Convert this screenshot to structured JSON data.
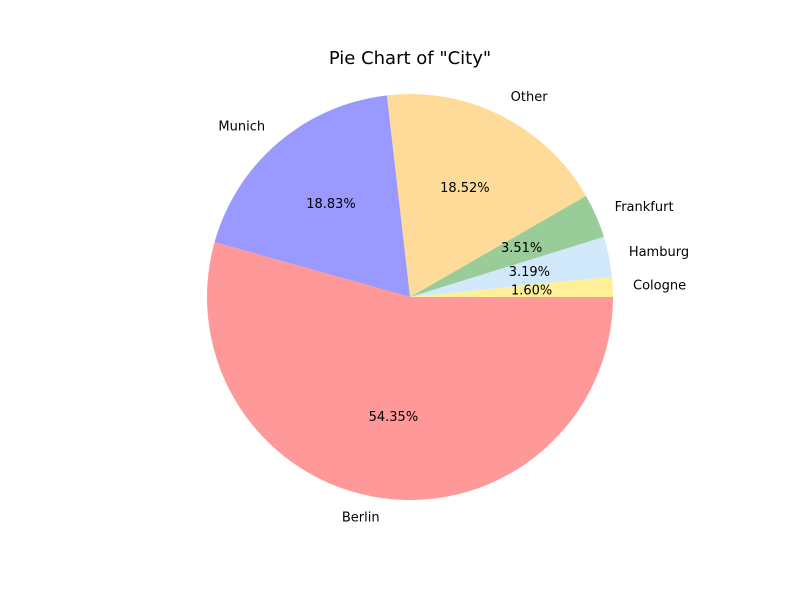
{
  "chart_data": {
    "type": "pie",
    "title": "Pie Chart of \"City\"",
    "start_angle_deg": 0,
    "direction": "counterclockwise",
    "slices": [
      {
        "label": "Cologne",
        "value": 1.6,
        "pct_label": "1.60%",
        "color": "#ffef99"
      },
      {
        "label": "Hamburg",
        "value": 3.19,
        "pct_label": "3.19%",
        "color": "#d1e9fb"
      },
      {
        "label": "Frankfurt",
        "value": 3.51,
        "pct_label": "3.51%",
        "color": "#99cc99"
      },
      {
        "label": "Other",
        "value": 18.52,
        "pct_label": "18.52%",
        "color": "#ffdb99"
      },
      {
        "label": "Munich",
        "value": 18.83,
        "pct_label": "18.83%",
        "color": "#9999ff"
      },
      {
        "label": "Berlin",
        "value": 54.35,
        "pct_label": "54.35%",
        "color": "#ff9999"
      }
    ]
  }
}
